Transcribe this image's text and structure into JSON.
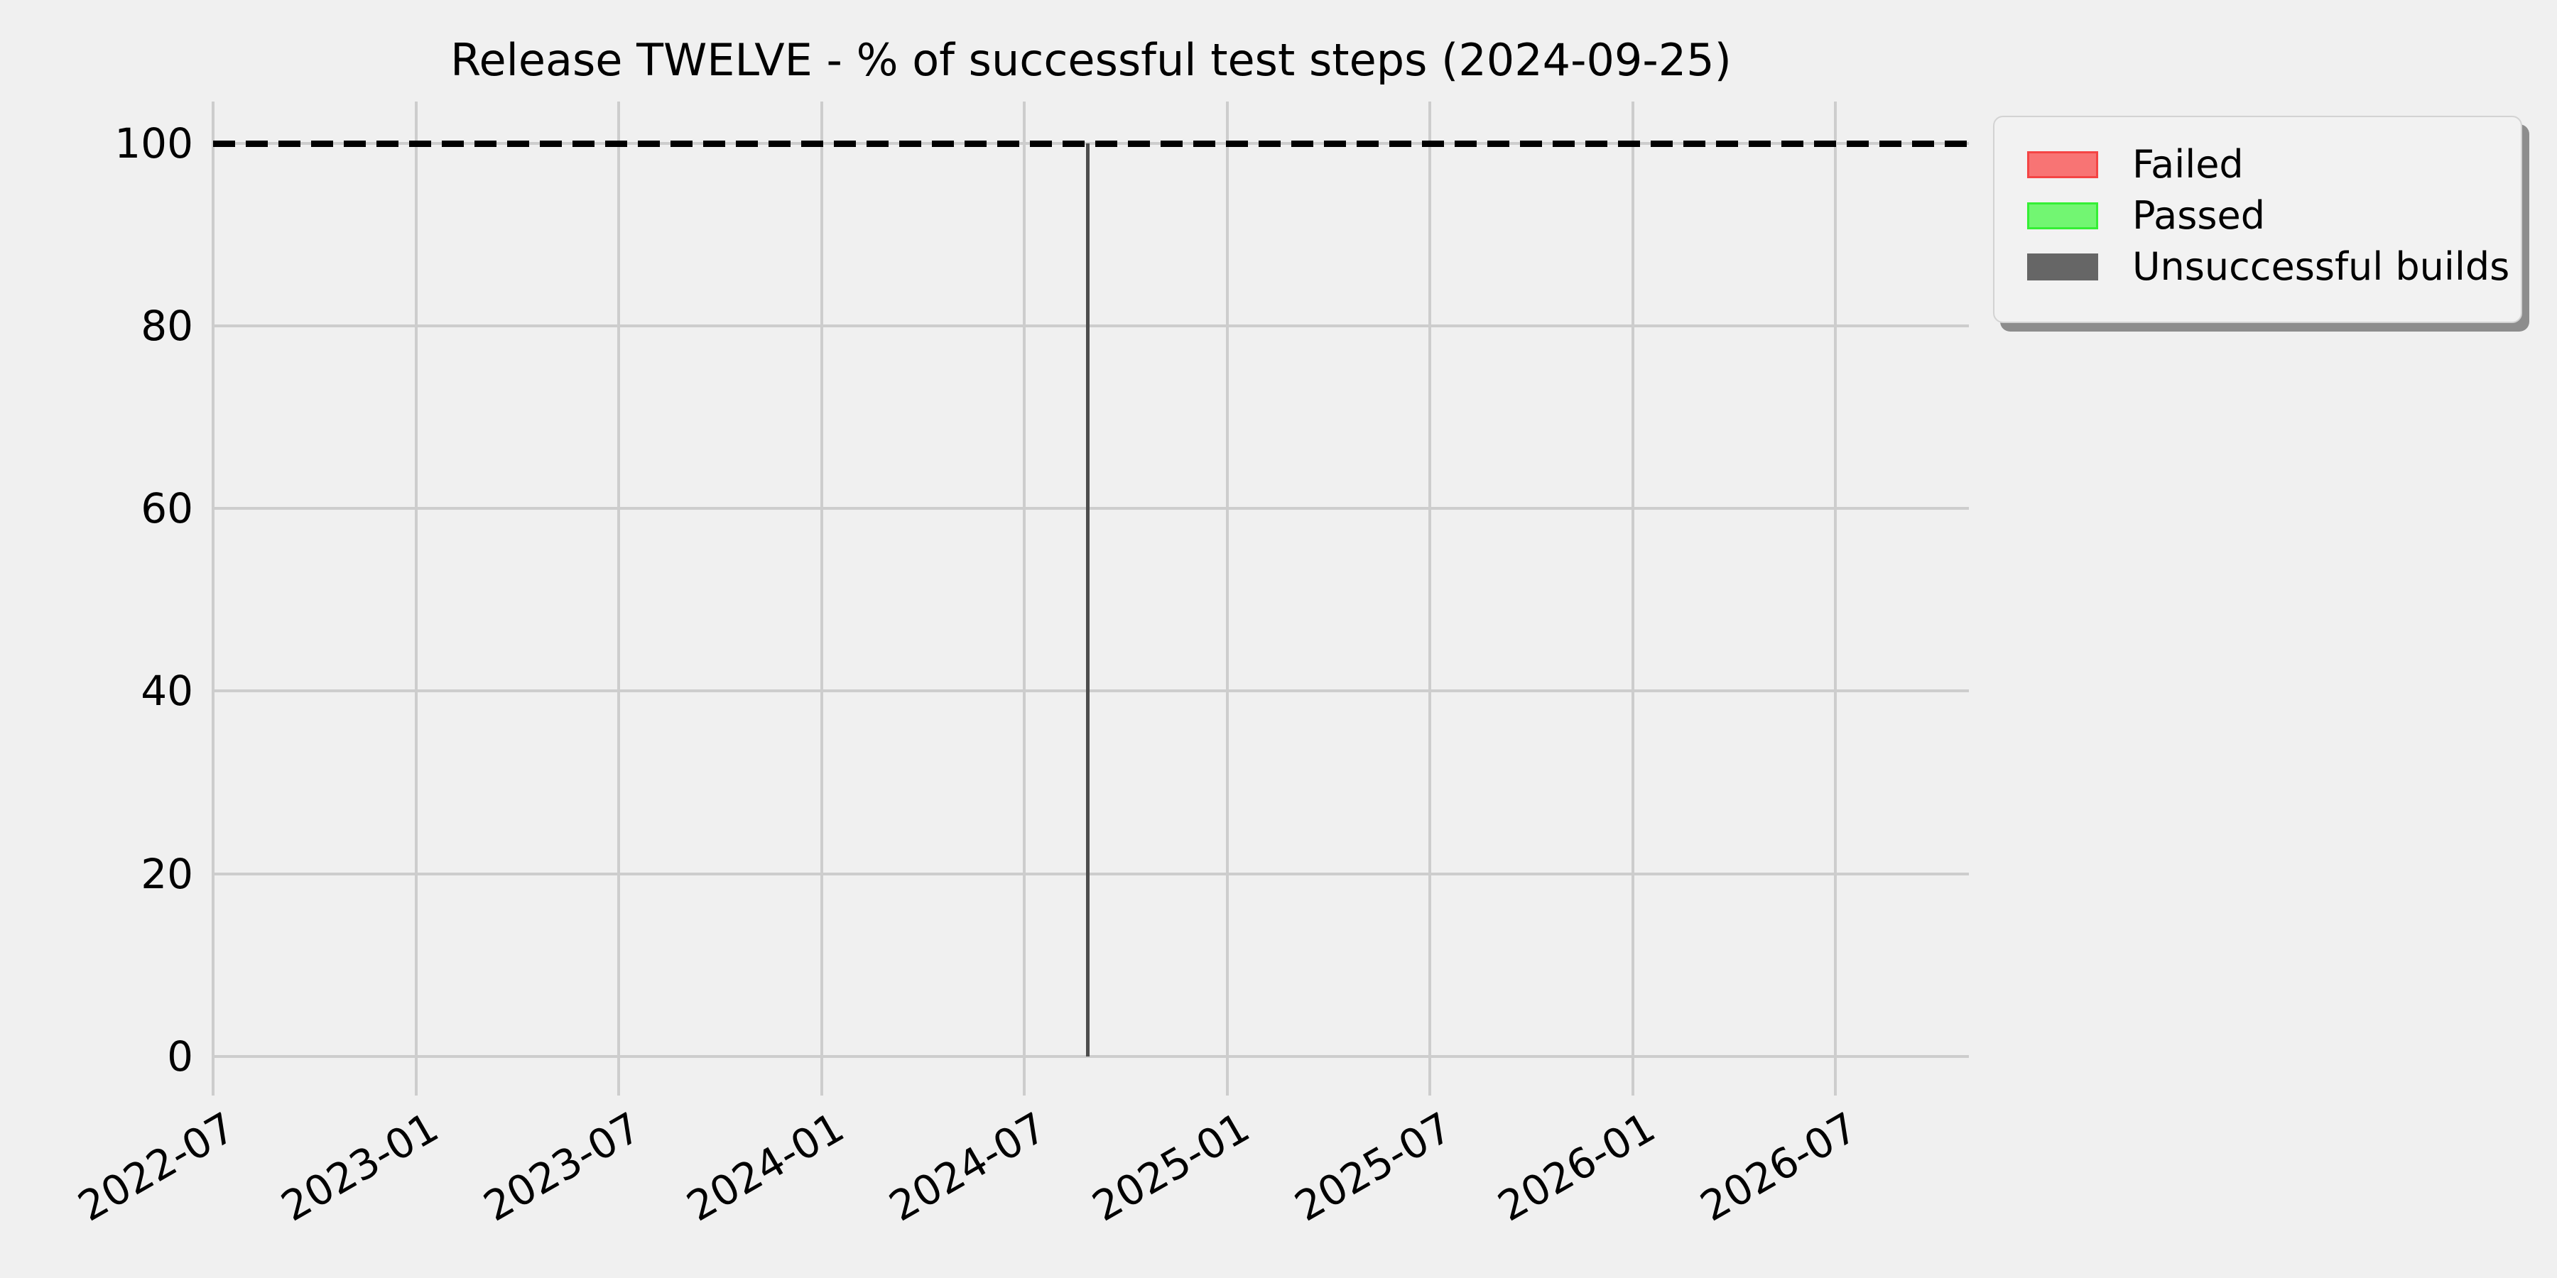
{
  "figure": {
    "background_color": "#f0f0f0",
    "grid_color": "#cdcdcd",
    "text_color": "#000000"
  },
  "chart_data": {
    "type": "bar",
    "title": "Release TWELVE - % of successful test steps (2024-09-25)",
    "xlabel": "",
    "ylabel": "",
    "x_tick_labels": [
      "2022-07",
      "2023-01",
      "2023-07",
      "2024-01",
      "2024-07",
      "2025-01",
      "2025-07",
      "2026-01",
      "2026-07"
    ],
    "y_ticks": [
      0,
      20,
      40,
      60,
      80,
      100
    ],
    "ylim": [
      -4.5,
      104.5
    ],
    "grid": true,
    "reference_line": {
      "y": 100,
      "style": "dashed",
      "color": "#000000"
    },
    "series": [
      {
        "name": "Failed",
        "fill": "#f87474",
        "edge": "#f44545",
        "values": []
      },
      {
        "name": "Passed",
        "fill": "#72f672",
        "edge": "#35ef35",
        "values": []
      },
      {
        "name": "Unsuccessful builds",
        "fill": "#666666",
        "edge": "#666666",
        "values": [
          {
            "x": "2024-09",
            "y": 100
          }
        ]
      }
    ],
    "bars": [
      {
        "series": "Unsuccessful builds",
        "x_fraction": 0.498,
        "height": 100,
        "color": "#4d4d4d"
      }
    ],
    "legend_position": "upper right"
  }
}
